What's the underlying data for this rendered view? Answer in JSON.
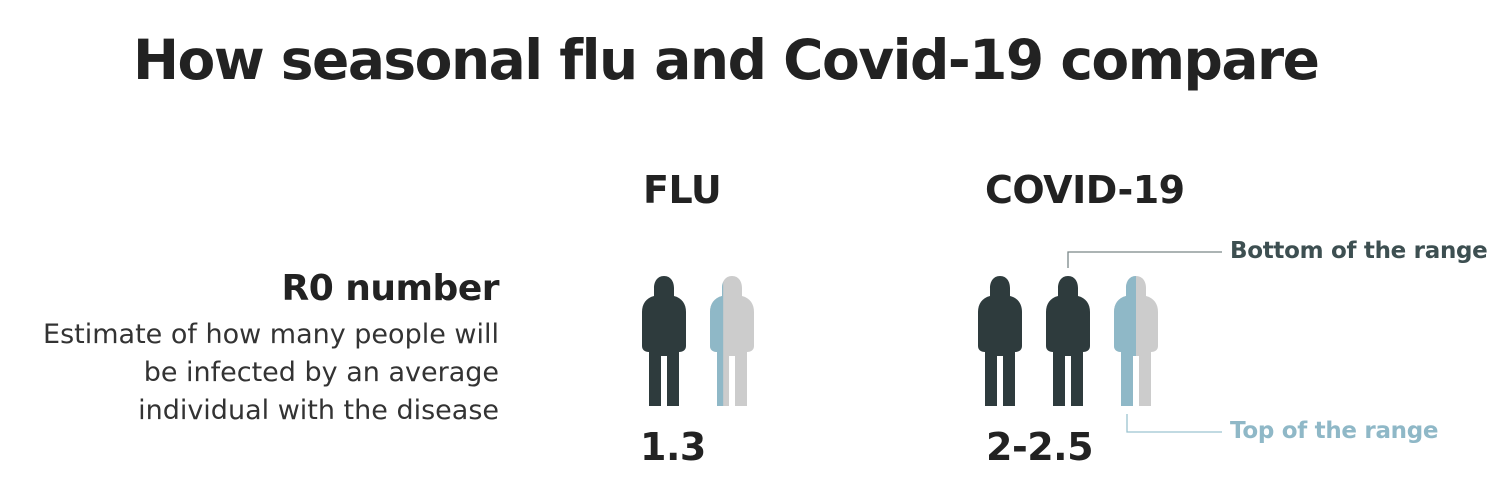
{
  "title": "How seasonal flu and Covid-19 compare",
  "metric": {
    "name": "R0 number",
    "description": "Estimate of how many people will be infected by an average individual with the disease"
  },
  "colors": {
    "full_person": "#2e3b3d",
    "bottom_range_accent": "#3d4f51",
    "top_range": "#8fb8c7",
    "remainder": "#cccccc"
  },
  "chart_data": {
    "type": "pictograph",
    "metric": "R0 number",
    "unit_icon": "person-icon",
    "columns": [
      {
        "label": "FLU",
        "value_label": "1.3",
        "low": 1.3,
        "high": 1.3
      },
      {
        "label": "COVID-19",
        "value_label": "2-2.5",
        "low": 2.0,
        "high": 2.5
      }
    ],
    "annotations": {
      "bottom": "Bottom of the range",
      "top": "Top of the range"
    }
  }
}
